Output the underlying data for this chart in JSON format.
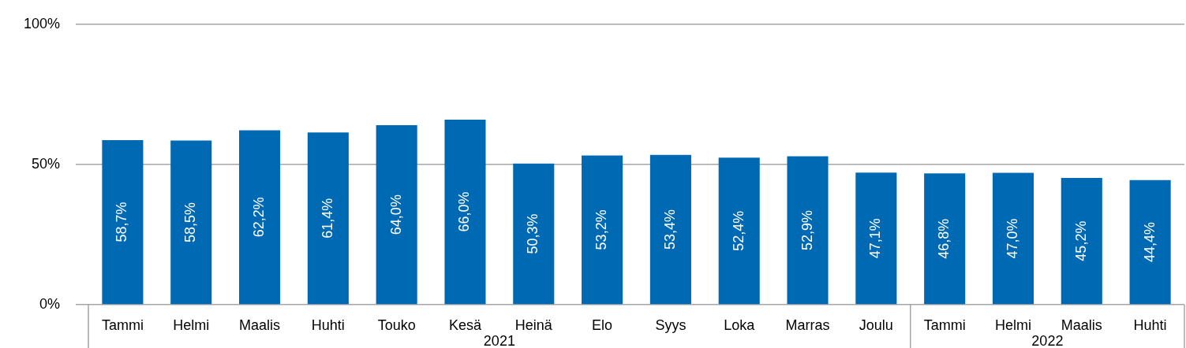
{
  "chart_data": {
    "type": "bar",
    "categories": [
      "Tammi",
      "Helmi",
      "Maalis",
      "Huhti",
      "Touko",
      "Kesä",
      "Heinä",
      "Elo",
      "Syys",
      "Loka",
      "Marras",
      "Joulu",
      "Tammi",
      "Helmi",
      "Maalis",
      "Huhti"
    ],
    "values": [
      58.7,
      58.5,
      62.2,
      61.4,
      64.0,
      66.0,
      50.3,
      53.2,
      53.4,
      52.4,
      52.9,
      47.1,
      46.8,
      47.0,
      45.2,
      44.4
    ],
    "value_labels": [
      "58,7%",
      "58,5%",
      "62,2%",
      "61,4%",
      "64,0%",
      "66,0%",
      "50,3%",
      "53,2%",
      "53,4%",
      "52,4%",
      "52,9%",
      "47,1%",
      "46,8%",
      "47,0%",
      "45,2%",
      "44,4%"
    ],
    "color": "#0069b4",
    "ylim": [
      0,
      100
    ],
    "yticks": [
      {
        "value": 0,
        "label": "0%"
      },
      {
        "value": 50,
        "label": "50%"
      },
      {
        "value": 100,
        "label": "100%"
      }
    ],
    "grid": "y",
    "annotations": [
      "2021",
      "2022"
    ]
  }
}
